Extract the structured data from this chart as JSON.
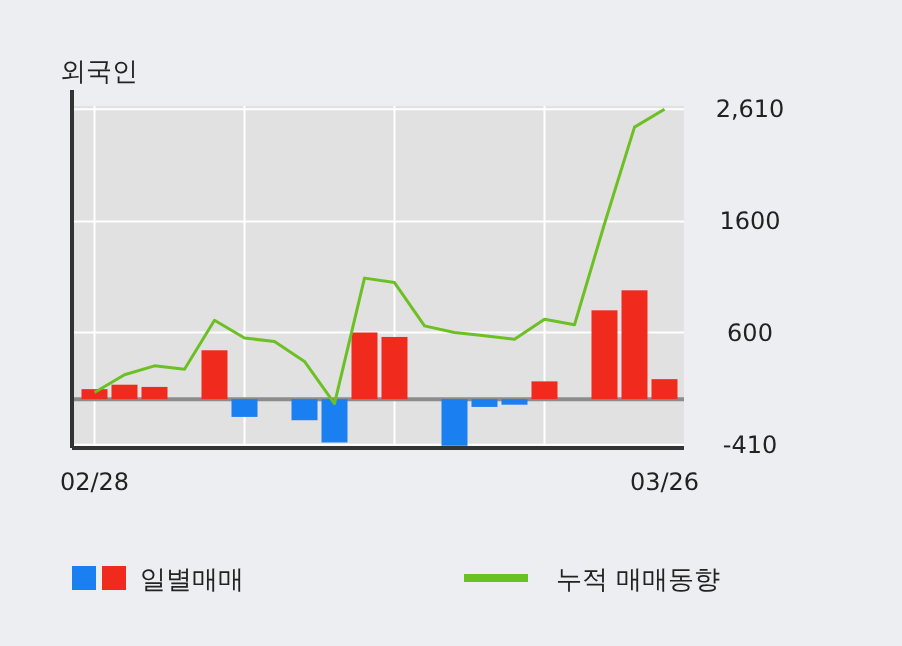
{
  "chart_data": {
    "type": "bar",
    "title": "외국인",
    "categories": [
      "02/28",
      null,
      null,
      null,
      null,
      null,
      null,
      null,
      null,
      null,
      null,
      null,
      null,
      null,
      null,
      null,
      null,
      null,
      null,
      "03/26"
    ],
    "series": [
      {
        "name": "일별매매",
        "values": [
          90,
          130,
          110,
          0,
          440,
          -160,
          0,
          -190,
          -390,
          600,
          560,
          0,
          -420,
          -70,
          -50,
          160,
          0,
          800,
          980,
          180
        ],
        "colors": [
          "#f02a1c",
          "#f02a1c",
          "#f02a1c",
          "#f02a1c",
          "#f02a1c",
          "#1a7ff0",
          "#f02a1c",
          "#1a7ff0",
          "#1a7ff0",
          "#f02a1c",
          "#f02a1c",
          "#f02a1c",
          "#1a7ff0",
          "#1a7ff0",
          "#1a7ff0",
          "#f02a1c",
          "#f02a1c",
          "#f02a1c",
          "#f02a1c",
          "#f02a1c"
        ]
      },
      {
        "name": "누적 매매동향",
        "type": "line",
        "color": "#6cc024",
        "values": [
          60,
          220,
          300,
          270,
          710,
          550,
          520,
          340,
          -40,
          1090,
          1050,
          660,
          600,
          570,
          540,
          720,
          670,
          1580,
          2450,
          2610
        ]
      }
    ],
    "ylim": [
      -440,
      2640
    ],
    "yticks": [
      {
        "value": -410,
        "label": "-410"
      },
      {
        "value": 600,
        "label": "600"
      },
      {
        "value": 1600,
        "label": "1600"
      },
      {
        "value": 2610,
        "label": "2,610"
      }
    ],
    "grid": true,
    "legend": "bottom"
  }
}
